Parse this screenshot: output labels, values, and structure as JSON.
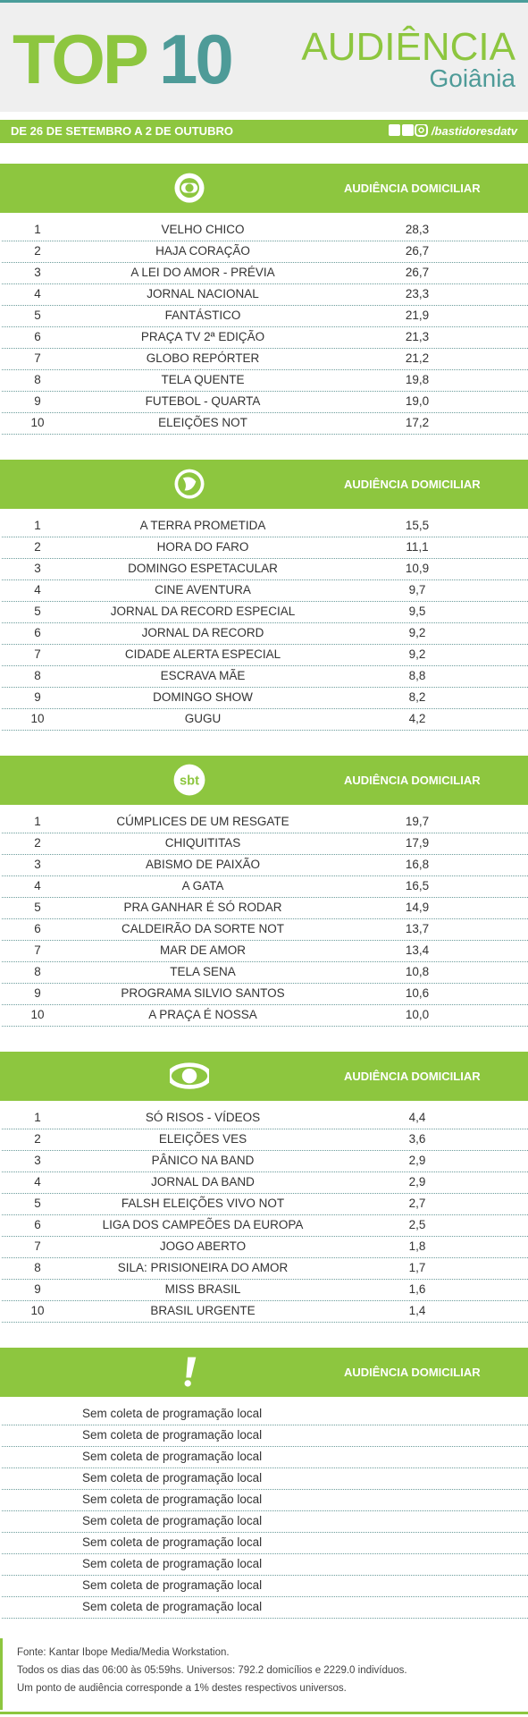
{
  "header": {
    "title_top": "TOP",
    "title_num": "10",
    "brand": "AUDIÊNCIA",
    "city": "Goiânia",
    "date_range": "DE 26 DE SETEMBRO A 2 DE OUTUBRO",
    "social": "/bastidoresdatv"
  },
  "sections": [
    {
      "logo": "globo",
      "column_title": "AUDIÊNCIA DOMICILIAR",
      "rows": [
        [
          "1",
          "VELHO CHICO",
          "28,3"
        ],
        [
          "2",
          "HAJA CORAÇÃO",
          "26,7"
        ],
        [
          "3",
          "A LEI DO AMOR - PRÉVIA",
          "26,7"
        ],
        [
          "4",
          "JORNAL NACIONAL",
          "23,3"
        ],
        [
          "5",
          "FANTÁSTICO",
          "21,9"
        ],
        [
          "6",
          "PRAÇA TV 2ª EDIÇÃO",
          "21,3"
        ],
        [
          "7",
          "GLOBO REPÓRTER",
          "21,2"
        ],
        [
          "8",
          "TELA QUENTE",
          "19,8"
        ],
        [
          "9",
          "FUTEBOL - QUARTA",
          "19,0"
        ],
        [
          "10",
          "ELEIÇÕES NOT",
          "17,2"
        ]
      ]
    },
    {
      "logo": "record",
      "column_title": "AUDIÊNCIA DOMICILIAR",
      "rows": [
        [
          "1",
          "A TERRA PROMETIDA",
          "15,5"
        ],
        [
          "2",
          "HORA DO FARO",
          "11,1"
        ],
        [
          "3",
          "DOMINGO ESPETACULAR",
          "10,9"
        ],
        [
          "4",
          "CINE AVENTURA",
          "9,7"
        ],
        [
          "5",
          "JORNAL DA RECORD ESPECIAL",
          "9,5"
        ],
        [
          "6",
          "JORNAL DA RECORD",
          "9,2"
        ],
        [
          "7",
          "CIDADE ALERTA ESPECIAL",
          "9,2"
        ],
        [
          "8",
          "ESCRAVA MÃE",
          "8,8"
        ],
        [
          "9",
          "DOMINGO SHOW",
          "8,2"
        ],
        [
          "10",
          "GUGU",
          "4,2"
        ]
      ]
    },
    {
      "logo": "sbt",
      "logo_text": "sbt",
      "column_title": "AUDIÊNCIA DOMICILIAR",
      "rows": [
        [
          "1",
          "CÚMPLICES DE UM RESGATE",
          "19,7"
        ],
        [
          "2",
          "CHIQUITITAS",
          "17,9"
        ],
        [
          "3",
          "ABISMO DE PAIXÃO",
          "16,8"
        ],
        [
          "4",
          "A GATA",
          "16,5"
        ],
        [
          "5",
          "PRA GANHAR É SÓ RODAR",
          "14,9"
        ],
        [
          "6",
          "CALDEIRÃO DA SORTE NOT",
          "13,7"
        ],
        [
          "7",
          "MAR DE AMOR",
          "13,4"
        ],
        [
          "8",
          "TELA SENA",
          "10,8"
        ],
        [
          "9",
          "PROGRAMA SILVIO SANTOS",
          "10,6"
        ],
        [
          "10",
          "A PRAÇA É NOSSA",
          "10,0"
        ]
      ]
    },
    {
      "logo": "band",
      "column_title": "AUDIÊNCIA DOMICILIAR",
      "rows": [
        [
          "1",
          "SÓ RISOS - VÍDEOS",
          "4,4"
        ],
        [
          "2",
          "ELEIÇÕES VES",
          "3,6"
        ],
        [
          "3",
          "PÂNICO NA BAND",
          "2,9"
        ],
        [
          "4",
          "JORNAL DA BAND",
          "2,9"
        ],
        [
          "5",
          "FALSH ELEIÇÕES VIVO NOT",
          "2,7"
        ],
        [
          "6",
          "LIGA DOS CAMPEÕES DA EUROPA",
          "2,5"
        ],
        [
          "7",
          "JOGO ABERTO",
          "1,8"
        ],
        [
          "8",
          "SILA: PRISIONEIRA DO AMOR",
          "1,7"
        ],
        [
          "9",
          "MISS BRASIL",
          "1,6"
        ],
        [
          "10",
          "BRASIL URGENTE",
          "1,4"
        ]
      ]
    },
    {
      "logo": "exclaim",
      "column_title": "AUDIÊNCIA DOMICILIAR",
      "rows": [
        [
          "Sem coleta de programação local"
        ],
        [
          "Sem coleta de programação local"
        ],
        [
          "Sem coleta de programação local"
        ],
        [
          "Sem coleta de programação local"
        ],
        [
          "Sem coleta de programação local"
        ],
        [
          "Sem coleta de programação local"
        ],
        [
          "Sem coleta de programação local"
        ],
        [
          "Sem coleta de programação local"
        ],
        [
          "Sem coleta de programação local"
        ],
        [
          "Sem coleta de programação local"
        ]
      ]
    }
  ],
  "footer": [
    "Fonte: Kantar Ibope Media/Media Workstation.",
    "Todos os dias das 06:00 às 05:59hs. Universos: 792.2 domicílios e 2229.0 indivíduos.",
    "Um ponto de audiência corresponde a 1% destes respectivos universos."
  ]
}
